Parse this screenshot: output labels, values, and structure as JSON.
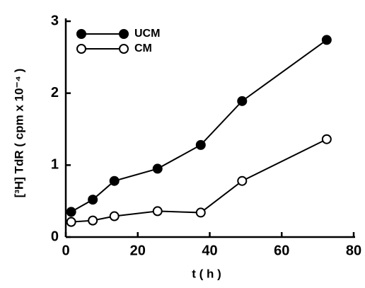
{
  "chart_data": {
    "type": "line",
    "x_label": "t ( h )",
    "y_label": "[³H] TdR ( cpm x 10⁻⁴ )",
    "x": [
      1.5,
      7.5,
      13.5,
      25.5,
      37.5,
      49,
      72.5
    ],
    "series": [
      {
        "name": "UCM",
        "color": "#000000",
        "filled": true,
        "values": [
          0.35,
          0.52,
          0.78,
          0.95,
          1.28,
          1.89,
          2.74
        ]
      },
      {
        "name": "CM",
        "color": "#000000",
        "filled": false,
        "values": [
          0.21,
          0.23,
          0.29,
          0.36,
          0.34,
          0.78,
          1.36
        ]
      }
    ],
    "xlim": [
      0,
      80
    ],
    "xticks": [
      0,
      20,
      40,
      60,
      80
    ],
    "ylim": [
      0,
      3
    ],
    "yticks": [
      0,
      1,
      2,
      3
    ],
    "grid": false,
    "legend": "upper left"
  }
}
